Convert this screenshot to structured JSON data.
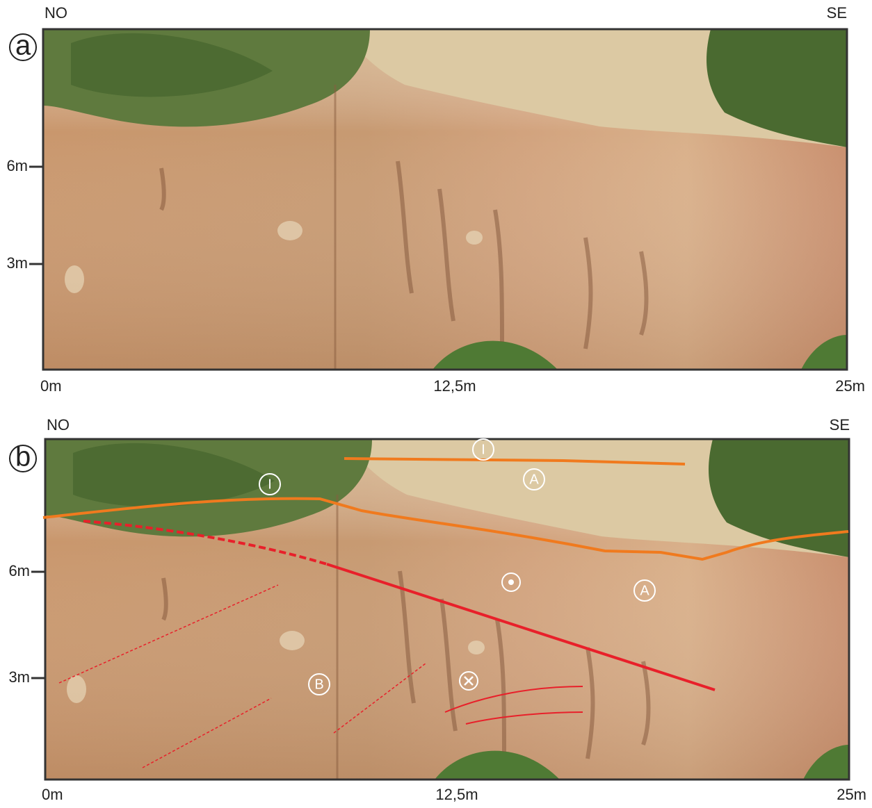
{
  "panels": [
    {
      "label": "a",
      "left_label": "NO",
      "right_label": "SE",
      "y_labels": [
        "6m",
        "3m"
      ],
      "x_labels": [
        "0m",
        "12,5m",
        "25m"
      ]
    },
    {
      "label": "b",
      "left_label": "NO",
      "right_label": "SE",
      "y_labels": [
        "6m",
        "3m"
      ],
      "x_labels": [
        "0m",
        "12,5m",
        "25m"
      ],
      "annotations": [
        "I",
        "A",
        "I",
        "A",
        "B"
      ]
    }
  ]
}
